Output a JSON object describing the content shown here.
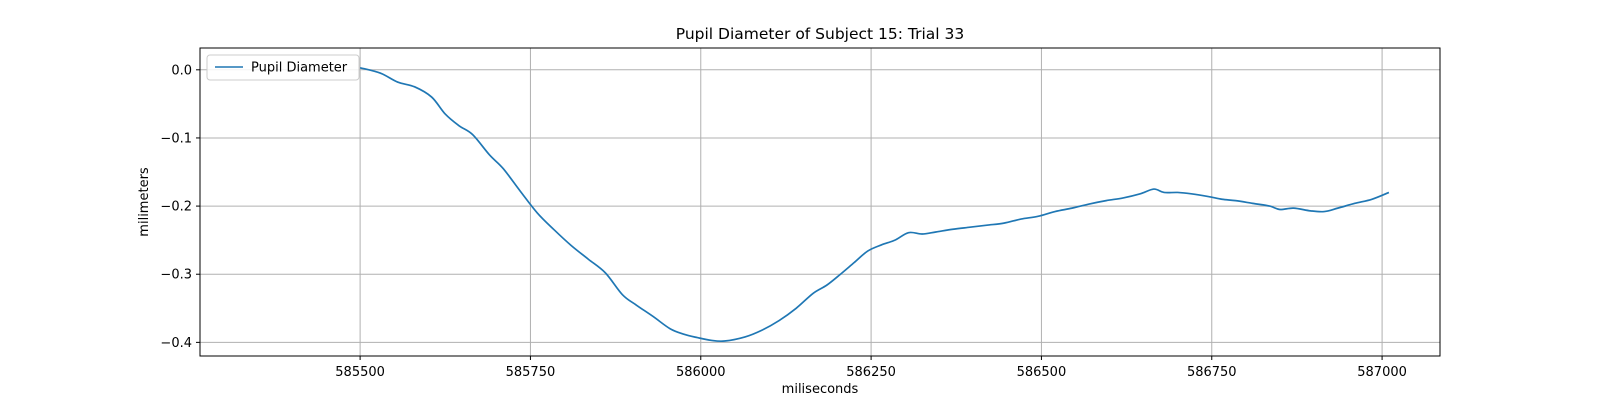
{
  "chart_data": {
    "type": "line",
    "title": "Pupil Diameter of Subject 15: Trial 33",
    "xlabel": "miliseconds",
    "ylabel": "milimeters",
    "xlim": [
      585265,
      587085
    ],
    "ylim": [
      -0.42,
      0.032
    ],
    "x_ticks": [
      585500,
      585750,
      586000,
      586250,
      586500,
      586750,
      587000
    ],
    "x_tick_labels": [
      "585500",
      "585750",
      "586000",
      "586250",
      "586500",
      "586750",
      "587000"
    ],
    "y_ticks": [
      0.0,
      -0.1,
      -0.2,
      -0.3,
      -0.4
    ],
    "y_tick_labels": [
      "0.0",
      "−0.1",
      "−0.2",
      "−0.3",
      "−0.4"
    ],
    "grid": true,
    "legend": {
      "position": "top-left",
      "entries": [
        "Pupil Diameter"
      ]
    },
    "colors": {
      "line": "#1f77b4",
      "grid": "#b0b0b0",
      "axes": "#000000"
    },
    "series": [
      {
        "name": "Pupil Diameter",
        "x": [
          585500,
          585530,
          585555,
          585580,
          585605,
          585625,
          585645,
          585665,
          585690,
          585710,
          585735,
          585760,
          585785,
          585810,
          585835,
          585860,
          585885,
          585905,
          585930,
          585955,
          585975,
          585995,
          586015,
          586035,
          586065,
          586090,
          586115,
          586140,
          586165,
          586185,
          586205,
          586225,
          586245,
          586265,
          586285,
          586305,
          586325,
          586345,
          586370,
          586395,
          586420,
          586445,
          586470,
          586495,
          586520,
          586545,
          586570,
          586595,
          586620,
          586645,
          586665,
          586680,
          586700,
          586720,
          586745,
          586765,
          586785,
          586810,
          586835,
          586850,
          586870,
          586895,
          586915,
          586935,
          586960,
          586985,
          587010
        ],
        "values": [
          0.003,
          -0.005,
          -0.018,
          -0.025,
          -0.04,
          -0.065,
          -0.082,
          -0.095,
          -0.125,
          -0.145,
          -0.178,
          -0.21,
          -0.235,
          -0.258,
          -0.278,
          -0.298,
          -0.33,
          -0.345,
          -0.362,
          -0.38,
          -0.388,
          -0.393,
          -0.397,
          -0.398,
          -0.392,
          -0.382,
          -0.368,
          -0.35,
          -0.328,
          -0.316,
          -0.3,
          -0.283,
          -0.266,
          -0.257,
          -0.25,
          -0.239,
          -0.241,
          -0.238,
          -0.234,
          -0.231,
          -0.228,
          -0.225,
          -0.219,
          -0.215,
          -0.208,
          -0.203,
          -0.197,
          -0.192,
          -0.188,
          -0.182,
          -0.175,
          -0.18,
          -0.18,
          -0.182,
          -0.186,
          -0.19,
          -0.192,
          -0.196,
          -0.2,
          -0.205,
          -0.203,
          -0.207,
          -0.208,
          -0.203,
          -0.196,
          -0.19,
          -0.18
        ]
      }
    ]
  }
}
